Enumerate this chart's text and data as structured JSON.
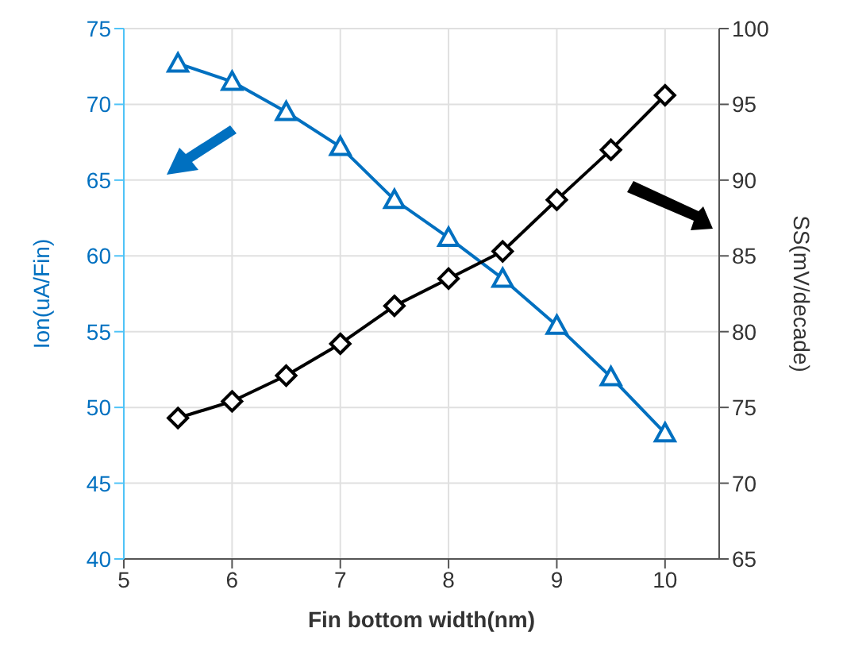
{
  "chart_data": {
    "type": "line",
    "xlabel": "Fin bottom width(nm)",
    "ylabel": "Ion(uA/Fin)",
    "y2label": "SS(mV/decade)",
    "x": [
      5.5,
      6,
      6.5,
      7,
      7.5,
      8,
      8.5,
      9,
      9.5,
      10
    ],
    "series": [
      {
        "color": "#0070c0",
        "marker": "triangle",
        "values": [
          72.7,
          71.5,
          69.5,
          67.2,
          63.7,
          61.2,
          58.5,
          55.4,
          52.0,
          48.3
        ]
      },
      {
        "color": "#000000",
        "marker": "diamond",
        "axis": "y2",
        "values": [
          74.3,
          75.4,
          77.1,
          79.2,
          81.7,
          83.5,
          85.3,
          88.7,
          92.0,
          95.6
        ]
      }
    ],
    "xlim": [
      5,
      10.5
    ],
    "xticks": [
      5,
      6,
      7,
      8,
      9,
      10
    ],
    "ylim": [
      40,
      75
    ],
    "yticks": [
      40,
      45,
      50,
      55,
      60,
      65,
      70,
      75
    ],
    "y2lim": [
      65,
      100
    ],
    "y2ticks": [
      65,
      70,
      75,
      80,
      85,
      90,
      95,
      100
    ],
    "grid": true,
    "line_style": "solid"
  }
}
